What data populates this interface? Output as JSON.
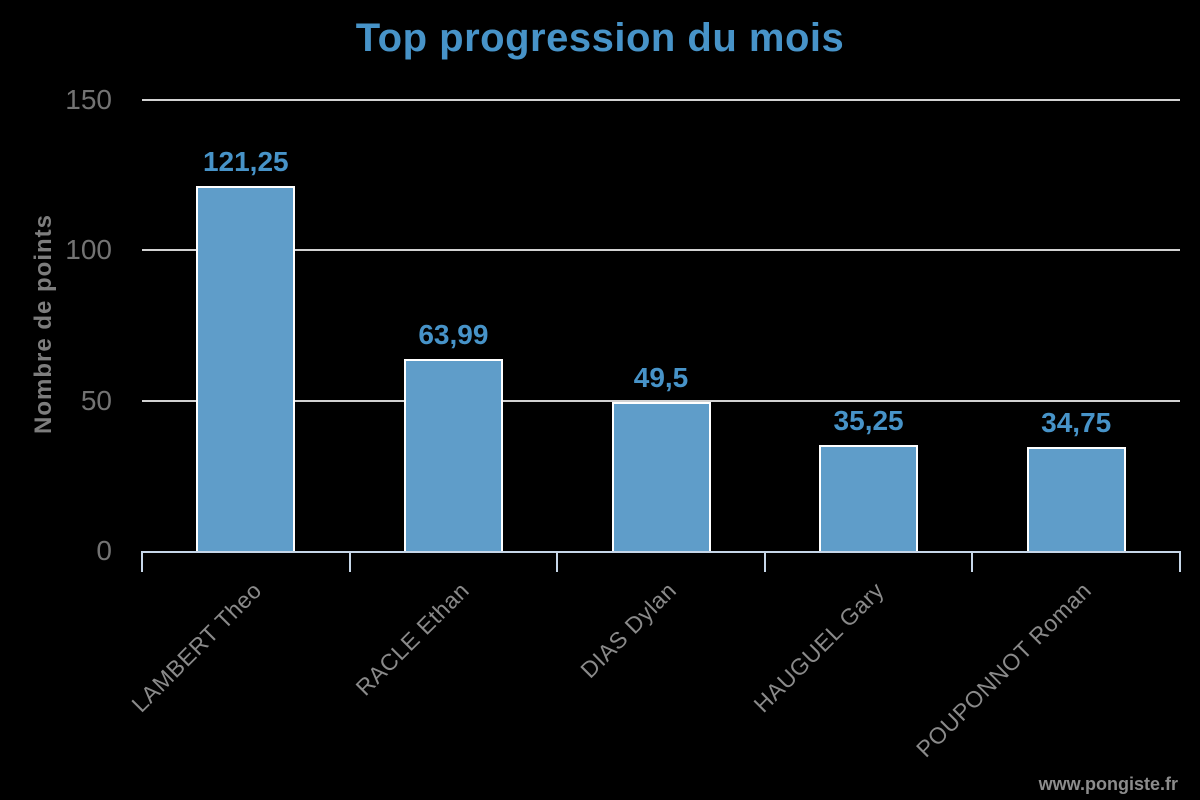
{
  "page": {
    "background": "#000000",
    "watermark": "www.pongiste.fr"
  },
  "colors": {
    "title": "#4793c8",
    "bar_fill": "#5f9dc9",
    "bar_edge": "#ffffff",
    "value_label": "#4793c8",
    "grid_line": "#d2d2d2",
    "axis_line": "#c6d6e8",
    "ytick_label": "#737373",
    "xtick_label": "#8a8a8a",
    "ylabel": "#7d7d7d",
    "watermark": "#8c8c8c",
    "background": "#000000"
  },
  "chart_data": {
    "type": "bar",
    "title": "Top progression du mois",
    "xlabel": "",
    "ylabel": "Nombre de points",
    "categories": [
      "LAMBERT Theo",
      "RACLE Ethan",
      "DIAS Dylan",
      "HAUGUEL Gary",
      "POUPONNOT Roman"
    ],
    "values": [
      121.25,
      63.99,
      49.5,
      35.25,
      34.75
    ],
    "value_labels": [
      "121,25",
      "63,99",
      "49,5",
      "35,25",
      "34,75"
    ],
    "yticks": [
      0,
      50,
      100,
      150
    ],
    "ylim": [
      0,
      150
    ],
    "grid": true,
    "legend_position": "none",
    "decimal_separator": ",",
    "x_label_rotation_deg": 45
  }
}
